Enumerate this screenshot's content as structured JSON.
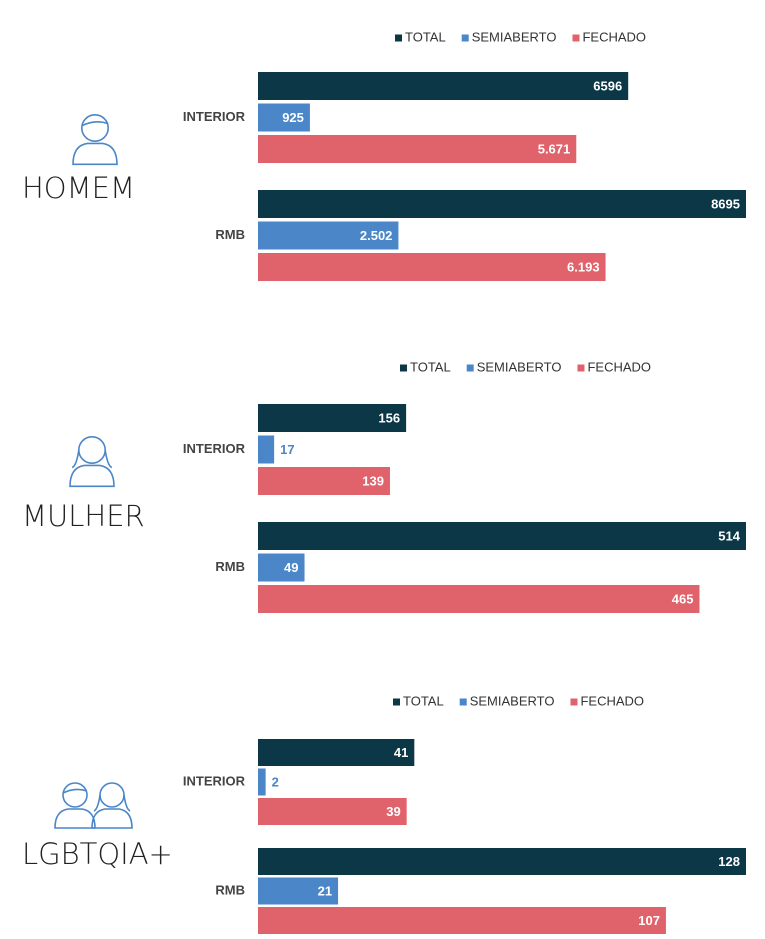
{
  "chart_data": [
    {
      "type": "bar",
      "title": "HOMEM",
      "categories": [
        "INTERIOR",
        "RMB"
      ],
      "series": [
        {
          "name": "TOTAL",
          "color": "#0b3747",
          "values": [
            6596,
            8695
          ]
        },
        {
          "name": "SEMIABERTO",
          "color": "#4a86c8",
          "values": [
            925,
            2502
          ],
          "value_labels": [
            "925",
            "2.502"
          ]
        },
        {
          "name": "FECHADO",
          "color": "#e0636b",
          "values": [
            5671,
            6193
          ],
          "value_labels": [
            "5.671",
            "6.193"
          ]
        }
      ]
    },
    {
      "type": "bar",
      "title": "MULHER",
      "categories": [
        "INTERIOR",
        "RMB"
      ],
      "series": [
        {
          "name": "TOTAL",
          "color": "#0b3747",
          "values": [
            156,
            514
          ]
        },
        {
          "name": "SEMIABERTO",
          "color": "#4a86c8",
          "values": [
            17,
            49
          ]
        },
        {
          "name": "FECHADO",
          "color": "#e0636b",
          "values": [
            139,
            465
          ]
        }
      ]
    },
    {
      "type": "bar",
      "title": "LGBTQIA+",
      "categories": [
        "INTERIOR",
        "RMB"
      ],
      "series": [
        {
          "name": "TOTAL",
          "color": "#0b3747",
          "values": [
            41,
            128
          ]
        },
        {
          "name": "SEMIABERTO",
          "color": "#4a86c8",
          "values": [
            2,
            21
          ]
        },
        {
          "name": "FECHADO",
          "color": "#e0636b",
          "values": [
            39,
            107
          ]
        }
      ]
    }
  ]
}
